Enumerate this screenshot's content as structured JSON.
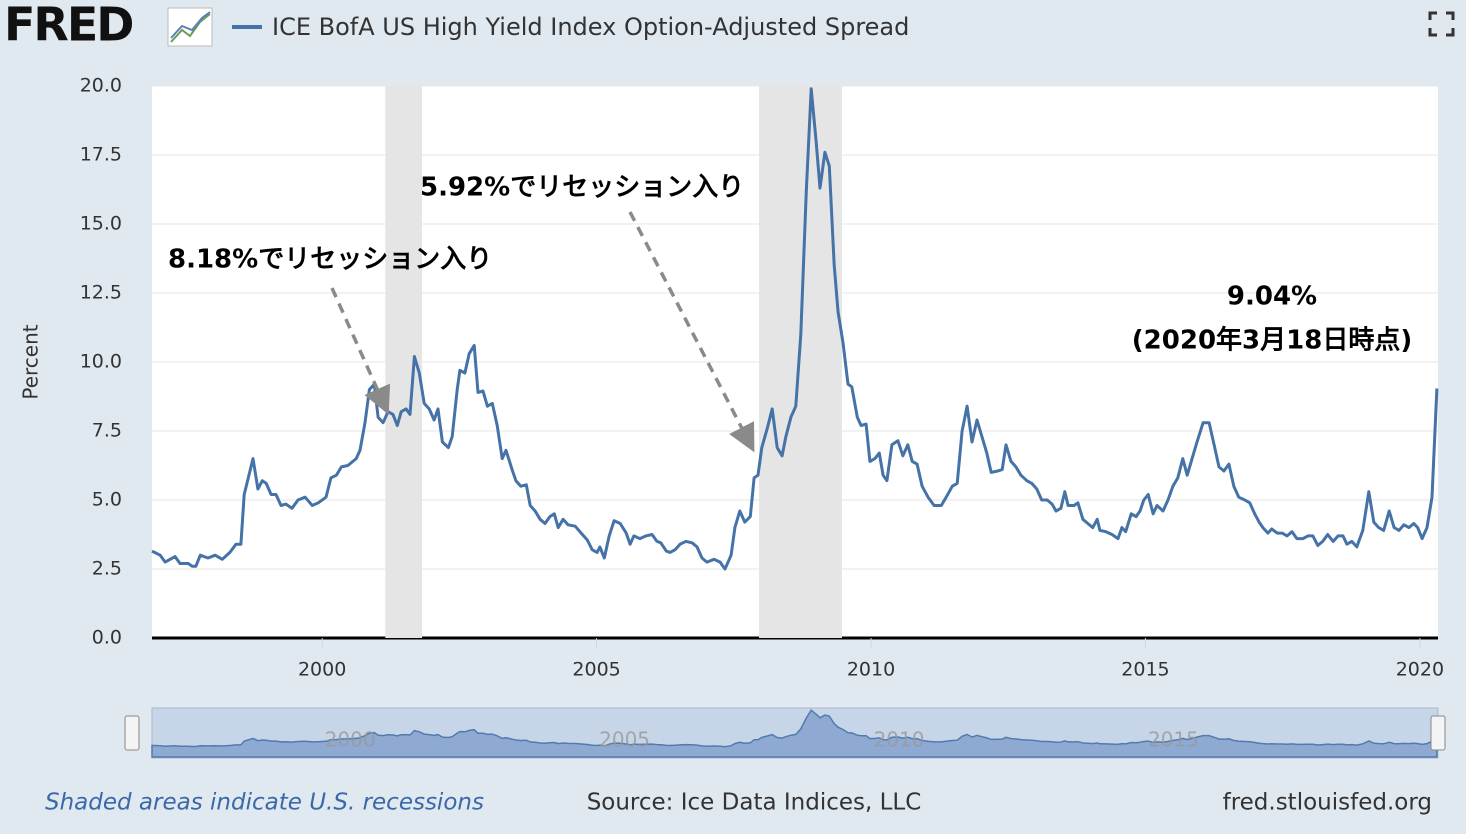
{
  "logo": "FRED",
  "chart_data": {
    "type": "line",
    "ylabel": "Percent",
    "xlim": [
      1996.9,
      2020.33
    ],
    "xticks": [
      2000,
      2005,
      2010,
      2015,
      2020
    ],
    "ylim": [
      0,
      20
    ],
    "yticks": [
      {
        "value": 0,
        "label": "0.0"
      },
      {
        "value": 2.5,
        "label": "2.5"
      },
      {
        "value": 5,
        "label": "5.0"
      },
      {
        "value": 7.5,
        "label": "7.5"
      },
      {
        "value": 10,
        "label": "10.0"
      },
      {
        "value": 12.5,
        "label": "12.5"
      },
      {
        "value": 15,
        "label": "15.0"
      },
      {
        "value": 17.5,
        "label": "17.5"
      },
      {
        "value": 20,
        "label": "20.0"
      }
    ],
    "grid": true,
    "recessions": [
      {
        "start": 2001.15,
        "end": 2001.82
      },
      {
        "start": 2007.96,
        "end": 2009.47
      }
    ],
    "annotations": [
      "8.18%でリセッション入り",
      "5.92%でリセッション入り",
      "9.04%",
      "(2020年3月18日時点)"
    ],
    "note": "Shaded areas indicate U.S. recessions",
    "source": "Source: Ice Data Indices, LLC",
    "site": "fred.stlouisfed.org",
    "x": [
      1996.9,
      1997.05,
      1997.14,
      1997.32,
      1997.41,
      1997.56,
      1997.63,
      1997.7,
      1997.78,
      1997.92,
      1998.05,
      1998.18,
      1998.32,
      1998.43,
      1998.52,
      1998.58,
      1998.74,
      1998.83,
      1998.91,
      1998.98,
      1999.07,
      1999.16,
      1999.25,
      1999.34,
      1999.45,
      1999.56,
      1999.69,
      1999.82,
      1999.93,
      2000.07,
      2000.16,
      2000.26,
      2000.35,
      2000.47,
      2000.62,
      2000.69,
      2000.78,
      2000.86,
      2000.95,
      2001.02,
      2001.11,
      2001.2,
      2001.29,
      2001.37,
      2001.44,
      2001.53,
      2001.6,
      2001.68,
      2001.77,
      2001.86,
      2001.95,
      2002.04,
      2002.11,
      2002.19,
      2002.3,
      2002.37,
      2002.46,
      2002.51,
      2002.6,
      2002.68,
      2002.77,
      2002.84,
      2002.93,
      2003.01,
      2003.1,
      2003.19,
      2003.28,
      2003.35,
      2003.46,
      2003.53,
      2003.62,
      2003.72,
      2003.79,
      2003.88,
      2003.97,
      2004.06,
      2004.15,
      2004.23,
      2004.3,
      2004.39,
      2004.48,
      2004.61,
      2004.72,
      2004.83,
      2004.92,
      2005.01,
      2005.06,
      2005.14,
      2005.23,
      2005.32,
      2005.43,
      2005.54,
      2005.61,
      2005.68,
      2005.79,
      2005.9,
      2006.01,
      2006.1,
      2006.17,
      2006.27,
      2006.34,
      2006.43,
      2006.52,
      2006.63,
      2006.74,
      2006.83,
      2006.92,
      2007.01,
      2007.14,
      2007.25,
      2007.34,
      2007.45,
      2007.52,
      2007.61,
      2007.7,
      2007.8,
      2007.87,
      2007.94,
      2008.01,
      2008.11,
      2008.2,
      2008.29,
      2008.38,
      2008.45,
      2008.54,
      2008.63,
      2008.72,
      2008.82,
      2008.91,
      2009.0,
      2009.07,
      2009.16,
      2009.24,
      2009.33,
      2009.4,
      2009.49,
      2009.58,
      2009.65,
      2009.75,
      2009.82,
      2009.91,
      2009.98,
      2010.07,
      2010.15,
      2010.22,
      2010.29,
      2010.38,
      2010.49,
      2010.58,
      2010.67,
      2010.75,
      2010.84,
      2010.93,
      2011.04,
      2011.15,
      2011.28,
      2011.37,
      2011.48,
      2011.57,
      2011.66,
      2011.75,
      2011.84,
      2011.93,
      2012.02,
      2012.11,
      2012.19,
      2012.31,
      2012.39,
      2012.46,
      2012.55,
      2012.64,
      2012.73,
      2012.84,
      2012.93,
      2013.02,
      2013.11,
      2013.21,
      2013.3,
      2013.37,
      2013.46,
      2013.53,
      2013.59,
      2013.7,
      2013.77,
      2013.86,
      2013.95,
      2014.04,
      2014.12,
      2014.17,
      2014.28,
      2014.39,
      2014.5,
      2014.57,
      2014.64,
      2014.74,
      2014.83,
      2014.9,
      2014.97,
      2015.05,
      2015.14,
      2015.21,
      2015.32,
      2015.41,
      2015.5,
      2015.59,
      2015.68,
      2015.76,
      2015.85,
      2015.94,
      2016.05,
      2016.16,
      2016.25,
      2016.34,
      2016.43,
      2016.52,
      2016.61,
      2016.7,
      2016.81,
      2016.9,
      2016.99,
      2017.07,
      2017.14,
      2017.23,
      2017.3,
      2017.4,
      2017.49,
      2017.58,
      2017.67,
      2017.76,
      2017.87,
      2017.96,
      2018.05,
      2018.14,
      2018.23,
      2018.32,
      2018.42,
      2018.51,
      2018.6,
      2018.67,
      2018.76,
      2018.85,
      2018.96,
      2019.07,
      2019.16,
      2019.25,
      2019.34,
      2019.44,
      2019.53,
      2019.62,
      2019.71,
      2019.8,
      2019.89,
      2019.96,
      2020.04,
      2020.13,
      2020.22,
      2020.31
    ],
    "series": [
      {
        "name": "ICE BofA US High Yield Index Option-Adjusted Spread",
        "color": "#4572a7",
        "values": [
          3.15,
          3.0,
          2.75,
          2.95,
          2.7,
          2.7,
          2.6,
          2.6,
          3.0,
          2.9,
          3.0,
          2.85,
          3.1,
          3.4,
          3.4,
          5.2,
          6.5,
          5.4,
          5.7,
          5.6,
          5.2,
          5.2,
          4.8,
          4.85,
          4.7,
          5.0,
          5.1,
          4.8,
          4.9,
          5.1,
          5.8,
          5.9,
          6.2,
          6.25,
          6.5,
          6.8,
          7.8,
          9.0,
          9.2,
          8.0,
          7.8,
          8.2,
          8.1,
          7.7,
          8.2,
          8.3,
          8.1,
          10.2,
          9.6,
          8.5,
          8.3,
          7.9,
          8.3,
          7.1,
          6.9,
          7.3,
          9.0,
          9.7,
          9.6,
          10.3,
          10.6,
          8.9,
          8.95,
          8.4,
          8.5,
          7.7,
          6.5,
          6.8,
          6.1,
          5.7,
          5.5,
          5.55,
          4.8,
          4.6,
          4.3,
          4.15,
          4.4,
          4.5,
          4.0,
          4.3,
          4.1,
          4.05,
          3.8,
          3.55,
          3.2,
          3.1,
          3.3,
          2.9,
          3.7,
          4.25,
          4.15,
          3.8,
          3.4,
          3.7,
          3.6,
          3.7,
          3.75,
          3.5,
          3.45,
          3.15,
          3.1,
          3.2,
          3.4,
          3.5,
          3.45,
          3.3,
          2.9,
          2.75,
          2.85,
          2.75,
          2.5,
          3.0,
          4.0,
          4.6,
          4.2,
          4.4,
          5.8,
          5.9,
          6.9,
          7.6,
          8.3,
          6.9,
          6.6,
          7.3,
          8.0,
          8.4,
          11.0,
          16.2,
          19.9,
          18.0,
          16.3,
          17.6,
          17.1,
          13.5,
          11.8,
          10.7,
          9.2,
          9.1,
          8.0,
          7.7,
          7.75,
          6.4,
          6.5,
          6.7,
          5.9,
          5.7,
          7.0,
          7.15,
          6.6,
          7.0,
          6.4,
          6.3,
          5.5,
          5.1,
          4.8,
          4.8,
          5.1,
          5.5,
          5.6,
          7.5,
          8.4,
          7.1,
          7.9,
          7.3,
          6.7,
          6.0,
          6.05,
          6.1,
          7.0,
          6.4,
          6.2,
          5.9,
          5.7,
          5.6,
          5.4,
          5.0,
          5.0,
          4.85,
          4.6,
          4.7,
          5.3,
          4.8,
          4.8,
          4.9,
          4.3,
          4.15,
          4.0,
          4.3,
          3.9,
          3.85,
          3.75,
          3.6,
          4.0,
          3.85,
          4.5,
          4.4,
          4.6,
          5.0,
          5.2,
          4.5,
          4.8,
          4.6,
          5.0,
          5.5,
          5.8,
          6.5,
          5.9,
          6.5,
          7.1,
          7.8,
          7.8,
          7.0,
          6.2,
          6.05,
          6.3,
          5.5,
          5.1,
          5.0,
          4.9,
          4.5,
          4.2,
          4.0,
          3.8,
          3.95,
          3.8,
          3.8,
          3.7,
          3.85,
          3.6,
          3.6,
          3.7,
          3.7,
          3.35,
          3.5,
          3.75,
          3.5,
          3.7,
          3.7,
          3.4,
          3.5,
          3.3,
          3.9,
          5.3,
          4.2,
          4.0,
          3.9,
          4.6,
          4.0,
          3.9,
          4.1,
          4.0,
          4.15,
          4.0,
          3.6,
          4.0,
          5.1,
          9.04
        ]
      }
    ]
  }
}
